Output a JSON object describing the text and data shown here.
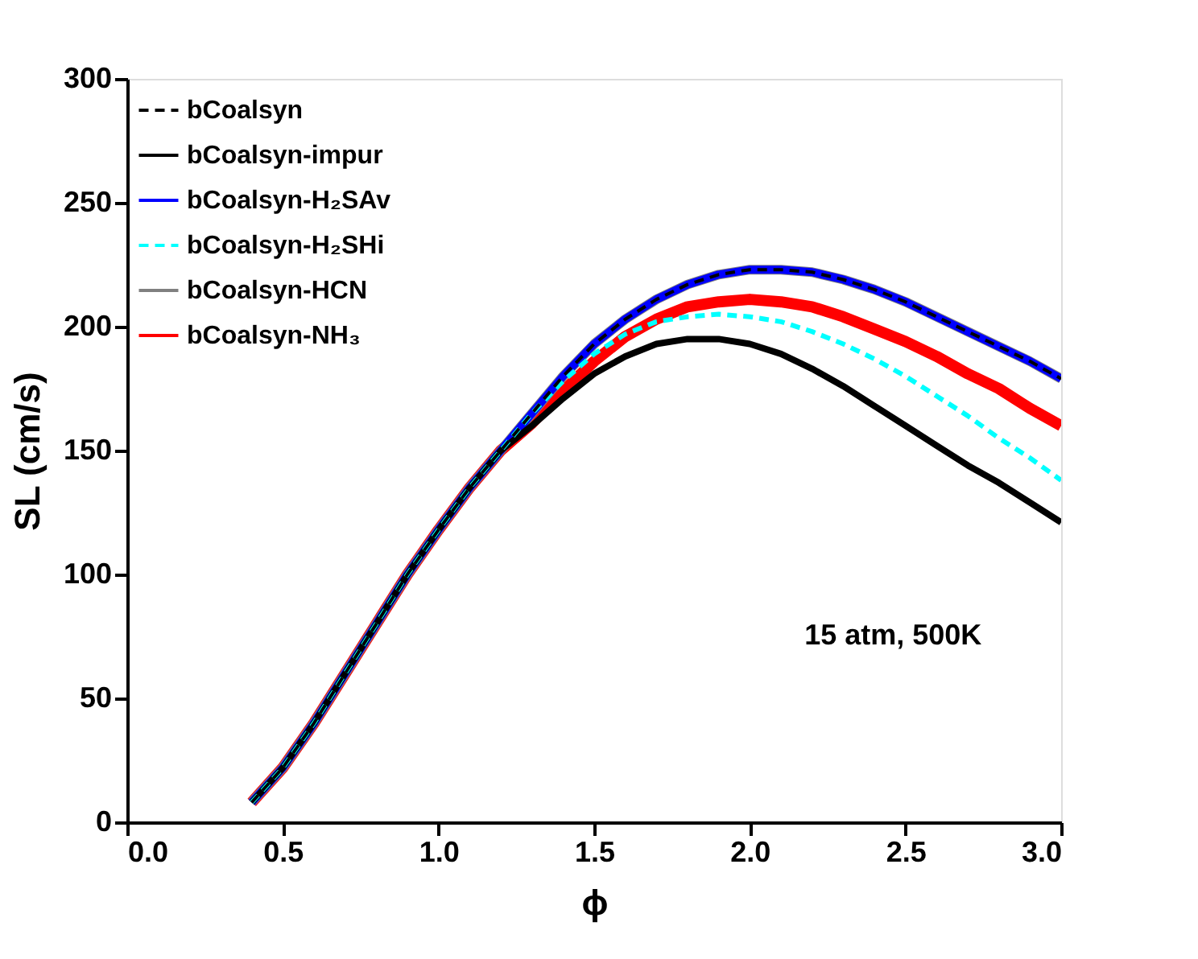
{
  "chart_data": {
    "type": "line",
    "xlabel": "ϕ",
    "ylabel": "SL (cm/s)",
    "x": [
      0.4,
      0.5,
      0.6,
      0.7,
      0.8,
      0.9,
      1.0,
      1.1,
      1.2,
      1.3,
      1.4,
      1.5,
      1.6,
      1.7,
      1.8,
      1.9,
      2.0,
      2.1,
      2.2,
      2.3,
      2.4,
      2.5,
      2.6,
      2.7,
      2.8,
      2.9,
      3.0
    ],
    "xlim": [
      0,
      3
    ],
    "xticks": [
      {
        "value": 0,
        "label": "0.0"
      },
      {
        "value": 0.5,
        "label": "0.5"
      },
      {
        "value": 1,
        "label": "1.0"
      },
      {
        "value": 1.5,
        "label": "1.5"
      },
      {
        "value": 2,
        "label": "2.0"
      },
      {
        "value": 2.5,
        "label": "2.5"
      },
      {
        "value": 3,
        "label": "3.0"
      }
    ],
    "ylim": [
      0,
      300
    ],
    "yticks": [
      0,
      50,
      100,
      150,
      200,
      250,
      300
    ],
    "grid": false,
    "legend": "top left",
    "marker": "none",
    "annotations": [
      "15 atm,  500K"
    ],
    "series": [
      {
        "name": "bCoalsyn",
        "color": "#000000",
        "line_style": "dashed",
        "values": [
          8,
          22,
          40,
          60,
          80,
          100,
          118,
          135,
          150,
          165,
          180,
          193,
          203,
          211,
          217,
          221,
          223,
          223,
          222,
          219,
          215,
          210,
          204,
          198,
          192,
          186,
          179
        ]
      },
      {
        "name": "bCoalsyn-impur",
        "color": "#000000",
        "line_style": "solid",
        "values": [
          8,
          22,
          40,
          60,
          80,
          100,
          118,
          135,
          150,
          160,
          171,
          181,
          188,
          193,
          195,
          195,
          193,
          189,
          183,
          176,
          168,
          160,
          152,
          144,
          137,
          129,
          121
        ]
      },
      {
        "name": "bCoalsyn-H₂SAv",
        "color": "#0000ff",
        "line_style": "solid",
        "values": [
          8,
          22,
          40,
          60,
          80,
          100,
          118,
          135,
          150,
          165,
          180,
          193,
          203,
          211,
          217,
          221,
          223,
          223,
          222,
          219,
          215,
          210,
          204,
          198,
          192,
          186,
          179
        ]
      },
      {
        "name": "bCoalsyn-H₂SHi",
        "color": "#00ffff",
        "line_style": "dashed",
        "values": [
          8,
          22,
          40,
          60,
          80,
          100,
          118,
          135,
          150,
          165,
          178,
          189,
          197,
          202,
          204,
          205,
          204,
          202,
          198,
          193,
          187,
          180,
          172,
          164,
          155,
          147,
          138
        ]
      },
      {
        "name": "bCoalsyn-HCN",
        "color": "#808080",
        "line_style": "solid",
        "values": [
          8,
          22,
          40,
          60,
          80,
          100,
          118,
          135,
          150,
          165,
          180,
          193,
          203,
          211,
          217,
          221,
          223,
          223,
          222,
          219,
          215,
          210,
          204,
          198,
          192,
          186,
          179
        ]
      },
      {
        "name": "bCoalsyn-NH₃",
        "color": "#ff0000",
        "line_style": "solid",
        "values": [
          8,
          22,
          40,
          60,
          80,
          100,
          118,
          135,
          150,
          161,
          174,
          186,
          196,
          203,
          208,
          210,
          211,
          210,
          208,
          204,
          199,
          194,
          188,
          181,
          175,
          167,
          160
        ]
      }
    ]
  }
}
